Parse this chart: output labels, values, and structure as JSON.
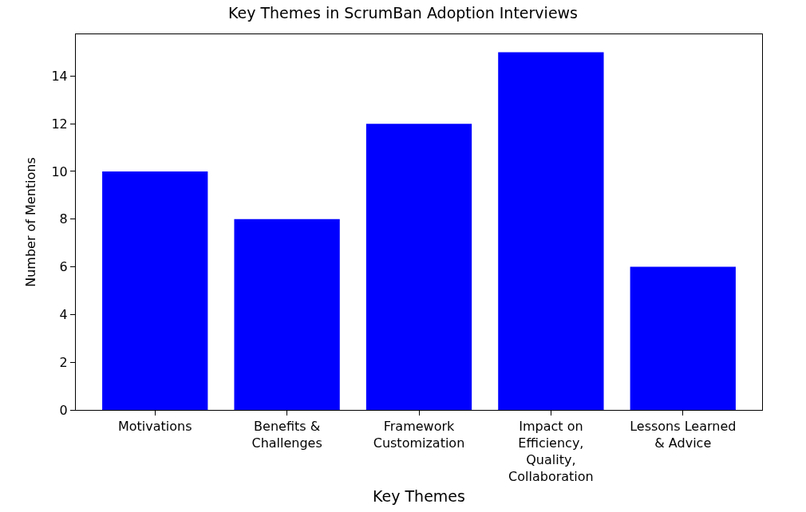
{
  "chart_data": {
    "type": "bar",
    "title": "Key Themes in ScrumBan Adoption Interviews",
    "xlabel": "Key Themes",
    "ylabel": "Number of Mentions",
    "categories": [
      "Motivations",
      "Benefits & Challenges",
      "Framework Customization",
      "Impact on Efficiency, Quality, Collaboration",
      "Lessons Learned & Advice"
    ],
    "values": [
      10,
      8,
      12,
      15,
      6
    ],
    "color": "#0000ff",
    "ylim": [
      0,
      15.75
    ],
    "yticks": [
      0,
      2,
      4,
      6,
      8,
      10,
      12,
      14
    ]
  }
}
